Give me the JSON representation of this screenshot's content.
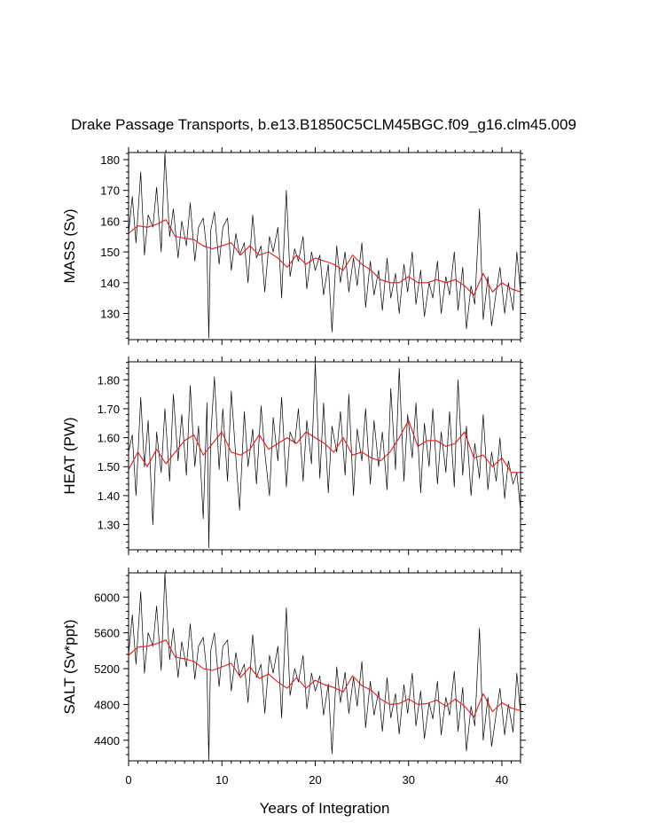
{
  "chart_data": {
    "type": "line",
    "title": "Drake Passage Transports, b.e13.B1850C5CLM45BGC.f09_g16.clm45.009",
    "xlabel": "Years of Integration",
    "xlim": [
      0,
      42
    ],
    "xticks": [
      0,
      10,
      20,
      30,
      40
    ],
    "xtick_labels": [
      "0",
      "10",
      "20",
      "30",
      "40"
    ],
    "colors": {
      "monthly": "#000000",
      "annual": "#e8191c"
    },
    "panels": [
      {
        "ylabel": "MASS (Sv)",
        "ylim": [
          121.5,
          182.3
        ],
        "yticks": [
          130,
          140,
          150,
          160,
          170,
          180
        ],
        "ytick_labels": [
          "130",
          "140",
          "150",
          "160",
          "170",
          "180"
        ],
        "series": [
          {
            "style": "monthly",
            "x": [
              0,
              0.4,
              0.8,
              1.3,
              1.7,
              2.1,
              2.6,
              3.0,
              3.5,
              3.9,
              4.4,
              4.8,
              5.3,
              5.7,
              6.2,
              6.6,
              7.1,
              7.5,
              8.0,
              8.4,
              8.6,
              8.8,
              9.2,
              9.7,
              10.1,
              10.6,
              11.0,
              11.5,
              11.9,
              12.4,
              12.8,
              13.3,
              13.7,
              14.2,
              14.6,
              15.1,
              15.5,
              16.0,
              16.4,
              16.9,
              17.3,
              17.8,
              18.2,
              18.7,
              19.1,
              19.6,
              20.0,
              20.5,
              20.9,
              21.4,
              21.8,
              22.3,
              22.7,
              23.2,
              23.6,
              24.1,
              24.5,
              25.0,
              25.4,
              25.9,
              26.3,
              26.8,
              27.2,
              27.7,
              28.1,
              28.6,
              29.0,
              29.5,
              29.9,
              30.4,
              30.8,
              31.3,
              31.7,
              32.2,
              32.6,
              33.1,
              33.5,
              34.0,
              34.4,
              34.9,
              35.3,
              35.8,
              36.2,
              36.7,
              37.1,
              37.6,
              38.0,
              38.5,
              38.9,
              39.4,
              39.8,
              40.3,
              40.7,
              41.2,
              41.6,
              42.0
            ],
            "y": [
              156,
              168,
              153,
              176,
              149,
              162,
              158,
              171,
              150,
              182,
              155,
              164,
              148,
              160,
              152,
              166,
              147,
              158,
              161,
              150,
              122,
              157,
              163,
              146,
              158,
              161,
              144,
              156,
              149,
              153,
              140,
              162,
              148,
              152,
              137,
              155,
              150,
              158,
              135,
              170,
              142,
              151,
              147,
              155,
              138,
              150,
              144,
              149,
              136,
              146,
              124,
              152,
              140,
              150,
              137,
              148,
              139,
              153,
              132,
              147,
              136,
              144,
              131,
              148,
              135,
              143,
              130,
              146,
              137,
              150,
              133,
              144,
              129,
              140,
              135,
              147,
              130,
              142,
              136,
              150,
              131,
              145,
              125,
              139,
              133,
              164,
              128,
              142,
              126,
              137,
              145,
              130,
              140,
              131,
              150,
              137
            ]
          },
          {
            "style": "annual",
            "x": [
              0,
              1,
              2,
              3,
              4,
              5,
              6,
              7,
              8,
              9,
              10,
              11,
              12,
              13,
              14,
              15,
              16,
              17,
              18,
              19,
              20,
              21,
              22,
              23,
              24,
              25,
              26,
              27,
              28,
              29,
              30,
              31,
              32,
              33,
              34,
              35,
              36,
              37,
              38,
              39,
              40,
              41,
              42
            ],
            "y": [
              156,
              158.5,
              158,
              159,
              160.5,
              155,
              154.5,
              154,
              152,
              151,
              152,
              153,
              149,
              152,
              149,
              150,
              148,
              145,
              149,
              146,
              148,
              147,
              146,
              144,
              149,
              146,
              144,
              141,
              140,
              140,
              142,
              140,
              140,
              141,
              140,
              141,
              139,
              136,
              143,
              137,
              140,
              138,
              137
            ]
          }
        ]
      },
      {
        "ylabel": "HEAT (PW)",
        "ylim": [
          1.213,
          1.862
        ],
        "yticks": [
          1.3,
          1.4,
          1.5,
          1.6,
          1.7,
          1.8
        ],
        "ytick_labels": [
          "1.30",
          "1.40",
          "1.50",
          "1.60",
          "1.70",
          "1.80"
        ],
        "series": [
          {
            "style": "monthly",
            "x": [
              0,
              0.4,
              0.8,
              1.3,
              1.7,
              2.1,
              2.6,
              3.0,
              3.5,
              3.9,
              4.4,
              4.8,
              5.3,
              5.7,
              6.2,
              6.6,
              7.1,
              7.5,
              8.0,
              8.4,
              8.6,
              8.8,
              9.2,
              9.7,
              10.1,
              10.6,
              11.0,
              11.5,
              11.9,
              12.4,
              12.8,
              13.3,
              13.7,
              14.2,
              14.6,
              15.1,
              15.5,
              16.0,
              16.4,
              16.9,
              17.3,
              17.8,
              18.2,
              18.7,
              19.1,
              19.6,
              20.0,
              20.5,
              20.9,
              21.4,
              21.8,
              22.3,
              22.7,
              23.2,
              23.6,
              24.1,
              24.5,
              25.0,
              25.4,
              25.9,
              26.3,
              26.8,
              27.2,
              27.7,
              28.1,
              28.6,
              29.0,
              29.5,
              29.9,
              30.4,
              30.8,
              31.3,
              31.7,
              32.2,
              32.6,
              33.1,
              33.5,
              34.0,
              34.4,
              34.9,
              35.3,
              35.8,
              36.2,
              36.7,
              37.1,
              37.6,
              38.0,
              38.5,
              38.9,
              39.4,
              39.8,
              40.3,
              40.7,
              41.2,
              41.6,
              42.0
            ],
            "y": [
              1.55,
              1.61,
              1.4,
              1.74,
              1.5,
              1.66,
              1.3,
              1.62,
              1.48,
              1.7,
              1.45,
              1.75,
              1.52,
              1.68,
              1.47,
              1.78,
              1.5,
              1.64,
              1.32,
              1.72,
              1.22,
              1.6,
              1.81,
              1.49,
              1.7,
              1.45,
              1.76,
              1.53,
              1.35,
              1.69,
              1.5,
              1.63,
              1.44,
              1.71,
              1.55,
              1.4,
              1.67,
              1.52,
              1.74,
              1.43,
              1.62,
              1.58,
              1.7,
              1.45,
              1.66,
              1.51,
              1.86,
              1.46,
              1.72,
              1.41,
              1.64,
              1.55,
              1.69,
              1.47,
              1.75,
              1.4,
              1.63,
              1.52,
              1.7,
              1.44,
              1.66,
              1.5,
              1.62,
              1.42,
              1.77,
              1.49,
              1.84,
              1.45,
              1.68,
              1.53,
              1.72,
              1.41,
              1.65,
              1.5,
              1.7,
              1.44,
              1.62,
              1.48,
              1.69,
              1.43,
              1.8,
              1.47,
              1.64,
              1.4,
              1.58,
              1.46,
              1.68,
              1.42,
              1.55,
              1.45,
              1.6,
              1.39,
              1.52,
              1.44,
              1.48,
              1.35
            ]
          },
          {
            "style": "annual",
            "x": [
              0,
              1,
              2,
              3,
              4,
              5,
              6,
              7,
              8,
              9,
              10,
              11,
              12,
              13,
              14,
              15,
              16,
              17,
              18,
              19,
              20,
              21,
              22,
              23,
              24,
              25,
              26,
              27,
              28,
              29,
              30,
              31,
              32,
              33,
              34,
              35,
              36,
              37,
              38,
              39,
              40,
              41,
              42
            ],
            "y": [
              1.49,
              1.55,
              1.5,
              1.56,
              1.51,
              1.55,
              1.59,
              1.61,
              1.54,
              1.58,
              1.62,
              1.55,
              1.54,
              1.56,
              1.61,
              1.56,
              1.58,
              1.6,
              1.58,
              1.62,
              1.6,
              1.58,
              1.55,
              1.6,
              1.54,
              1.55,
              1.53,
              1.52,
              1.55,
              1.6,
              1.66,
              1.57,
              1.59,
              1.59,
              1.57,
              1.58,
              1.62,
              1.53,
              1.54,
              1.5,
              1.53,
              1.48,
              1.48
            ]
          }
        ]
      },
      {
        "ylabel": "SALT (Sv*ppt)",
        "ylim": [
          4170,
          6270
        ],
        "yticks": [
          4400,
          4800,
          5200,
          5600,
          6000
        ],
        "ytick_labels": [
          "4400",
          "4800",
          "5200",
          "5600",
          "6000"
        ],
        "series": [
          {
            "style": "monthly",
            "x": [
              0,
              0.4,
              0.8,
              1.3,
              1.7,
              2.1,
              2.6,
              3.0,
              3.5,
              3.9,
              4.4,
              4.8,
              5.3,
              5.7,
              6.2,
              6.6,
              7.1,
              7.5,
              8.0,
              8.4,
              8.6,
              8.8,
              9.2,
              9.7,
              10.1,
              10.6,
              11.0,
              11.5,
              11.9,
              12.4,
              12.8,
              13.3,
              13.7,
              14.2,
              14.6,
              15.1,
              15.5,
              16.0,
              16.4,
              16.9,
              17.3,
              17.8,
              18.2,
              18.7,
              19.1,
              19.6,
              20.0,
              20.5,
              20.9,
              21.4,
              21.8,
              22.3,
              22.7,
              23.2,
              23.6,
              24.1,
              24.5,
              25.0,
              25.4,
              25.9,
              26.3,
              26.8,
              27.2,
              27.7,
              28.1,
              28.6,
              29.0,
              29.5,
              29.9,
              30.4,
              30.8,
              31.3,
              31.7,
              32.2,
              32.6,
              33.1,
              33.5,
              34.0,
              34.4,
              34.9,
              35.3,
              35.8,
              36.2,
              36.7,
              37.1,
              37.6,
              38.0,
              38.5,
              38.9,
              39.4,
              39.8,
              40.3,
              40.7,
              41.2,
              41.6,
              42.0
            ],
            "y": [
              5350,
              5800,
              5250,
              6060,
              5150,
              5600,
              5450,
              5900,
              5180,
              6270,
              5300,
              5650,
              5100,
              5500,
              5220,
              5700,
              5080,
              5450,
              5550,
              5150,
              4180,
              5400,
              5600,
              5000,
              5450,
              5520,
              4950,
              5380,
              5120,
              5250,
              4820,
              5580,
              5100,
              5250,
              4700,
              5350,
              5150,
              5450,
              4650,
              5880,
              4900,
              5200,
              5050,
              5350,
              4750,
              5150,
              4950,
              5120,
              4680,
              5030,
              4250,
              5220,
              4820,
              5160,
              4700,
              5100,
              4780,
              5280,
              4540,
              5060,
              4680,
              4950,
              4500,
              5100,
              4650,
              4920,
              4470,
              5020,
              4700,
              5150,
              4560,
              4950,
              4420,
              4820,
              4640,
              5060,
              4460,
              4880,
              4680,
              5170,
              4500,
              4990,
              4280,
              4780,
              4560,
              5650,
              4400,
              4880,
              4330,
              4700,
              4980,
              4460,
              4800,
              4490,
              5150,
              4700
            ]
          },
          {
            "style": "annual",
            "x": [
              0,
              1,
              2,
              3,
              4,
              5,
              6,
              7,
              8,
              9,
              10,
              11,
              12,
              13,
              14,
              15,
              16,
              17,
              18,
              19,
              20,
              21,
              22,
              23,
              24,
              25,
              26,
              27,
              28,
              29,
              30,
              31,
              32,
              33,
              34,
              35,
              36,
              37,
              38,
              39,
              40,
              41,
              42
            ],
            "y": [
              5350,
              5440,
              5450,
              5480,
              5520,
              5330,
              5310,
              5280,
              5200,
              5180,
              5220,
              5260,
              5100,
              5220,
              5090,
              5140,
              5050,
              4980,
              5100,
              4980,
              5070,
              5020,
              4990,
              4940,
              5120,
              5010,
              4960,
              4860,
              4800,
              4810,
              4860,
              4800,
              4810,
              4850,
              4780,
              4860,
              4780,
              4660,
              4920,
              4720,
              4820,
              4760,
              4730
            ]
          }
        ]
      }
    ]
  }
}
